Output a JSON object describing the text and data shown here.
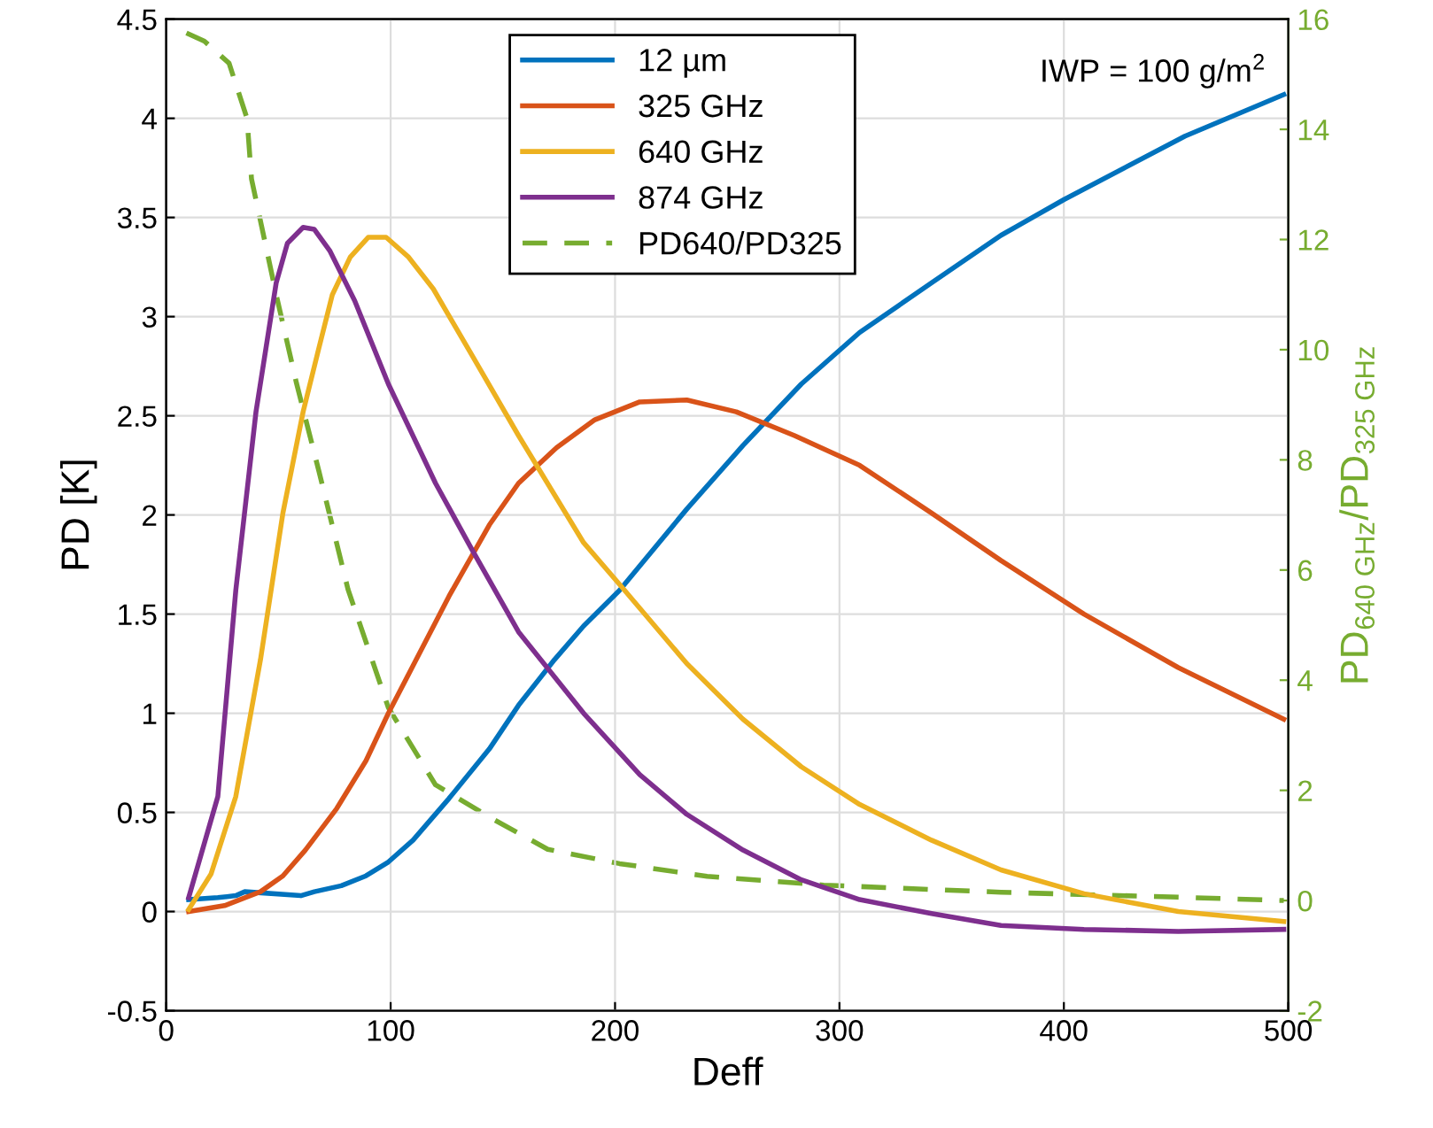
{
  "chart_data": {
    "type": "line",
    "xlabel": "Deff",
    "ylabel": "PD [K]",
    "y2label": "PD$_{640 GHz}$/PD$_{325 GHz}$",
    "xlim": [
      0,
      500
    ],
    "xticks": [
      0,
      100,
      200,
      300,
      400,
      500
    ],
    "ylim": [
      -0.5,
      4.5
    ],
    "yticks": [
      -0.5,
      0,
      0.5,
      1,
      1.5,
      2,
      2.5,
      3,
      3.5,
      4,
      4.5
    ],
    "y2lim": [
      -2,
      16
    ],
    "y2ticks": [
      -2,
      0,
      2,
      4,
      6,
      8,
      10,
      12,
      14,
      16
    ],
    "grid": true,
    "legend": "top",
    "annotations": [
      "IWP = 100 g/m$^{2}$"
    ],
    "series": [
      {
        "name": "12 µm",
        "color": "#0072bd",
        "x": [
          10,
          23,
          31,
          35,
          60,
          66,
          78,
          89,
          99,
          110,
          126,
          144,
          157,
          173,
          186,
          202,
          232,
          257,
          283,
          309,
          341,
          372,
          400,
          454,
          498
        ],
        "values": [
          0.06,
          0.07,
          0.08,
          0.1,
          0.08,
          0.1,
          0.13,
          0.18,
          0.25,
          0.36,
          0.57,
          0.82,
          1.04,
          1.27,
          1.44,
          1.62,
          2.03,
          2.35,
          2.66,
          2.92,
          3.17,
          3.41,
          3.59,
          3.91,
          4.12
        ]
      },
      {
        "name": "325 GHz",
        "color": "#d95319",
        "x": [
          10,
          26,
          42,
          52,
          62,
          76,
          89,
          99,
          110,
          126,
          144,
          157,
          174,
          191,
          211,
          232,
          254,
          280,
          309,
          341,
          372,
          409,
          451,
          498
        ],
        "values": [
          0,
          0.03,
          0.1,
          0.18,
          0.31,
          0.52,
          0.76,
          1.0,
          1.24,
          1.59,
          1.95,
          2.16,
          2.34,
          2.48,
          2.57,
          2.58,
          2.52,
          2.4,
          2.25,
          2.01,
          1.77,
          1.5,
          1.23,
          0.97
        ]
      },
      {
        "name": "640 GHz",
        "color": "#edb120",
        "x": [
          10,
          20,
          31,
          42,
          52,
          61,
          68,
          74,
          82,
          90,
          98,
          108,
          119,
          136,
          157,
          186,
          202,
          232,
          257,
          283,
          309,
          341,
          372,
          409,
          451,
          498
        ],
        "values": [
          0.01,
          0.19,
          0.58,
          1.27,
          2.01,
          2.52,
          2.84,
          3.11,
          3.3,
          3.4,
          3.4,
          3.3,
          3.14,
          2.81,
          2.4,
          1.86,
          1.65,
          1.25,
          0.97,
          0.73,
          0.54,
          0.36,
          0.21,
          0.09,
          0.0,
          -0.05
        ]
      },
      {
        "name": "874 GHz",
        "color": "#7e2f8e",
        "x": [
          10,
          23,
          31,
          40,
          49,
          54,
          61,
          66,
          73,
          84,
          99,
          120,
          136,
          157,
          186,
          211,
          232,
          257,
          283,
          309,
          341,
          372,
          409,
          451,
          498
        ],
        "values": [
          0.07,
          0.58,
          1.62,
          2.52,
          3.17,
          3.37,
          3.45,
          3.44,
          3.33,
          3.08,
          2.66,
          2.16,
          1.83,
          1.41,
          1.0,
          0.69,
          0.49,
          0.31,
          0.16,
          0.06,
          -0.01,
          -0.07,
          -0.09,
          -0.1,
          -0.09
        ]
      },
      {
        "name": "PD640/PD325",
        "color": "#77ac30",
        "axis": "y2",
        "line_style": "dashed",
        "x": [
          9,
          17,
          28,
          36,
          38,
          49,
          58,
          68,
          81,
          99,
          120,
          146,
          170,
          202,
          241,
          293,
          372,
          451,
          498
        ],
        "values": [
          15.75,
          15.6,
          15.2,
          14.2,
          13.1,
          11.0,
          9.4,
          7.8,
          5.65,
          3.5,
          2.1,
          1.47,
          0.93,
          0.67,
          0.44,
          0.28,
          0.15,
          0.06,
          0.0
        ]
      }
    ]
  }
}
